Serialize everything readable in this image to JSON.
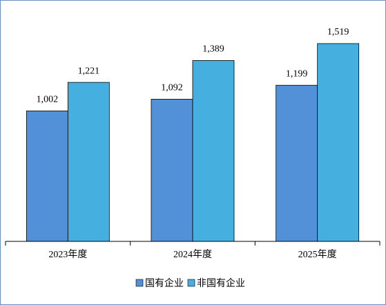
{
  "chart_data": {
    "type": "bar",
    "categories": [
      "2023年度",
      "2024年度",
      "2025年度"
    ],
    "series": [
      {
        "name": "国有企业",
        "color": "#5291d8",
        "values": [
          1002,
          1092,
          1199
        ],
        "value_labels": [
          "1,002",
          "1,092",
          "1,199"
        ]
      },
      {
        "name": "非国有企业",
        "color": "#45b0e0",
        "values": [
          1221,
          1389,
          1519
        ],
        "value_labels": [
          "1,221",
          "1,389",
          "1,519"
        ]
      }
    ],
    "legend": "bottom"
  }
}
